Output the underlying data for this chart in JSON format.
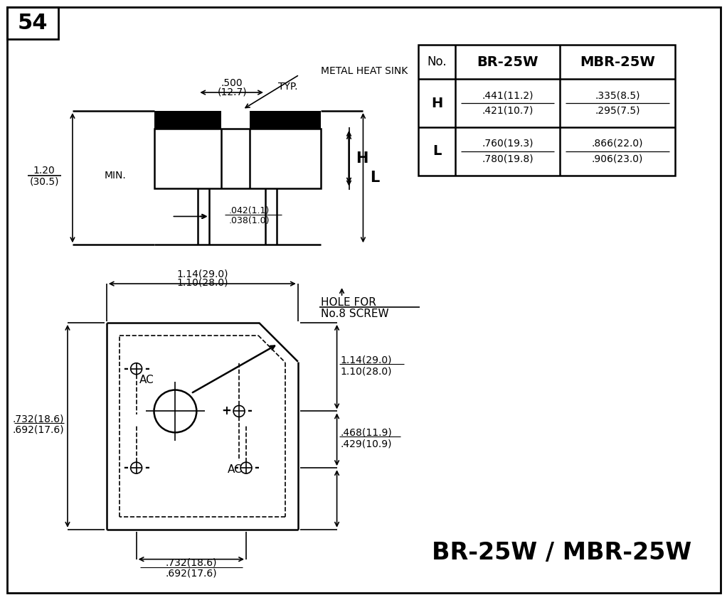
{
  "bg_color": "#ffffff",
  "fg_color": "#000000",
  "border_color": "#000000",
  "title": "54",
  "part_name": "BR-25W / MBR-25W",
  "table_headers": [
    "No.",
    "BR-25W",
    "MBR-25W"
  ],
  "table_row_H": [
    "H",
    ".441(11.2)",
    ".421(10.7)",
    ".335(8.5)",
    ".295(7.5)"
  ],
  "table_row_L": [
    "L",
    ".760(19.3)",
    ".780(19.8)",
    ".866(22.0)",
    ".906(23.0)"
  ],
  "top_dims": {
    "dim_500_a": ".500",
    "dim_500_b": "(12.7)",
    "typ": "TYP.",
    "metal_heat_sink": "METAL HEAT SINK",
    "dim_120_a": "1.20",
    "dim_120_b": "(30.5)",
    "min": "MIN.",
    "H_label": "H",
    "L_label": "L",
    "dim_042": ".042(1.1)",
    "dim_038": ".038(1.0)"
  },
  "bot_dims": {
    "dim_114a": "1.14(29.0)",
    "dim_110a": "1.10(28.0)",
    "hole_for": "HOLE FOR",
    "no8_screw": "No.8 SCREW",
    "dim_732l_a": ".732(18.6)",
    "dim_692l_b": ".692(17.6)",
    "dim_114r_a": "1.14(29.0)",
    "dim_110r_b": "1.10(28.0)",
    "dim_468_a": ".468(11.9)",
    "dim_429_b": ".429(10.9)",
    "dim_732b_a": ".732(18.6)",
    "dim_692b_b": ".692(17.6)",
    "ac_top": "AC",
    "ac_bot": "AC",
    "plus": "+",
    "minus_tl": "-",
    "minus_bl": "-",
    "minus_br": "-"
  }
}
